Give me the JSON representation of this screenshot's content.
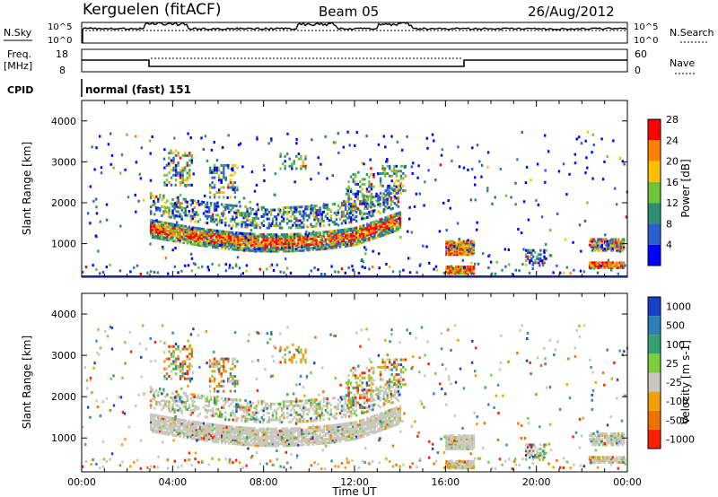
{
  "header": {
    "station": "Kerguelen (fitACF)",
    "beam": "Beam 05",
    "date": "26/Aug/2012"
  },
  "panels": {
    "nsky_label": "N.Sky",
    "nsearch_label": "N.Search",
    "freq_label_line1": "Freq.",
    "freq_label_line2": "[MHz]",
    "nave_label": "Nave",
    "cpid_label": "CPID",
    "cpid_value": "normal (fast) 151",
    "log_ticks_left": [
      "10^5",
      "10^0"
    ],
    "log_ticks_right": [
      "10^5",
      "10^0"
    ],
    "freq_ticks": [
      "18",
      "8"
    ],
    "nave_ticks": [
      "60",
      "0"
    ]
  },
  "chart_data": [
    {
      "type": "heatmap",
      "name": "power",
      "ylabel": "Slant Range [km]",
      "xlim": [
        0,
        24
      ],
      "ylim": [
        180,
        4500
      ],
      "yticks": [
        "1000",
        "2000",
        "3000",
        "4000"
      ],
      "colorbar": {
        "label": "Power [dB]",
        "ticks": [
          "4",
          "8",
          "12",
          "16",
          "20",
          "24",
          "28"
        ],
        "colors": [
          "#0000ff",
          "#2a5fd0",
          "#2f8f70",
          "#6fc43a",
          "#ffc000",
          "#ff8000",
          "#ff0000"
        ]
      },
      "regions": [
        {
          "t": [
            3.0,
            14.0
          ],
          "r": [
            900,
            1200
          ],
          "level": "high"
        },
        {
          "t": [
            4.0,
            13.5
          ],
          "r": [
            1300,
            2000
          ],
          "level": "mid"
        },
        {
          "t": [
            16.0,
            17.2
          ],
          "r": [
            750,
            1000
          ],
          "level": "high"
        },
        {
          "t": [
            16.0,
            17.2
          ],
          "r": [
            250,
            400
          ],
          "level": "high"
        },
        {
          "t": [
            22.3,
            23.8
          ],
          "r": [
            400,
            1100
          ],
          "level": "high"
        }
      ]
    },
    {
      "type": "heatmap",
      "name": "velocity",
      "ylabel": "Slant Range [km]",
      "xlabel": "Time UT",
      "xlim": [
        0,
        24
      ],
      "ylim": [
        180,
        4500
      ],
      "yticks": [
        "1000",
        "2000",
        "3000",
        "4000"
      ],
      "xticks": [
        "00:00",
        "04:00",
        "08:00",
        "12:00",
        "16:00",
        "20:00",
        "00:00"
      ],
      "colorbar": {
        "label": "Velocity [m s-1]",
        "ticks": [
          "1000",
          "500",
          "100",
          "25",
          "-25",
          "-100",
          "-500",
          "-1000"
        ],
        "colors": [
          "#1b3fc8",
          "#2e7fb8",
          "#35a070",
          "#7ccf3b",
          "#c8c8c0",
          "#f0a000",
          "#f07000",
          "#ff2000"
        ]
      },
      "regions": [
        {
          "t": [
            3.0,
            14.0
          ],
          "r": [
            900,
            2000
          ],
          "level": "near-zero"
        },
        {
          "t": [
            16.0,
            24.0
          ],
          "r": [
            300,
            1100
          ],
          "level": "near-zero"
        }
      ]
    }
  ]
}
